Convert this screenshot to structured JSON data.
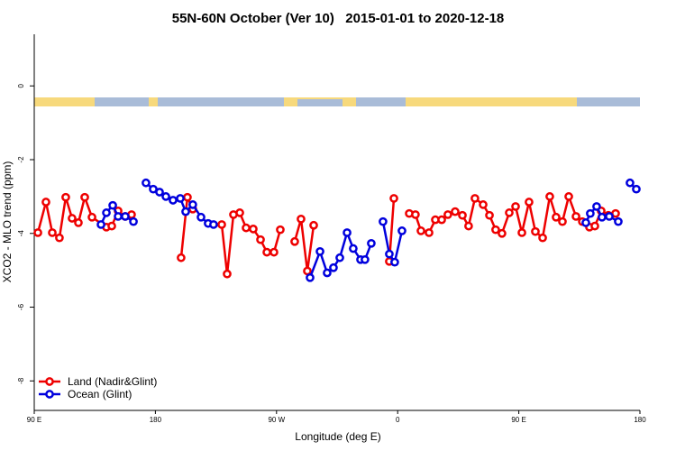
{
  "chart_data": {
    "type": "line",
    "title": "55N-60N October (Ver 10)   2015-01-01 to 2020-12-18",
    "x_label": "Longitude (deg E)",
    "y_label": "XCO2 - MLO trend (ppm)",
    "xlim": [
      90,
      540
    ],
    "xticks": [
      {
        "value": 90,
        "label": "90 E"
      },
      180,
      {
        "value": 270,
        "label": "90 W"
      },
      {
        "value": 360,
        "label": "0"
      },
      {
        "value": 450,
        "label": "90 E"
      },
      {
        "value": 540,
        "label": "180"
      }
    ],
    "ylim": [
      -8.8,
      1.4
    ],
    "yticks": [
      0,
      -2,
      -4,
      -6,
      -8
    ],
    "legend": "bottom-left",
    "series": [
      {
        "name": "Land (Nadir&Glint)",
        "color": "#ee0000",
        "x": [
          92.7,
          98.7,
          103.4,
          108.7,
          113.4,
          118.1,
          122.8,
          127.5,
          132.9,
          143.6,
          147.6,
          152.3,
          157.6,
          162.3,
          null,
          199.1,
          203.8,
          207.8,
          null,
          229.3,
          233.3,
          238.0,
          242.7,
          247.4,
          252.7,
          258.1,
          262.8,
          268.1,
          272.8,
          null,
          283.5,
          288.2,
          292.9,
          297.6,
          null,
          353.8,
          357.2,
          null,
          368.6,
          373.2,
          377.3,
          383.3,
          388.0,
          392.7,
          397.3,
          402.7,
          408.1,
          412.7,
          417.4,
          423.5,
          428.2,
          432.8,
          437.5,
          442.9,
          447.6,
          452.3,
          457.6,
          462.3,
          467.7,
          473.0,
          477.7,
          482.4,
          487.1,
          492.5,
          497.2,
          502.5,
          506.5,
          511.2,
          516.5,
          521.9
        ],
        "values": [
          -3.98,
          -3.15,
          -3.98,
          -4.12,
          -3.02,
          -3.59,
          -3.71,
          -3.02,
          -3.56,
          -3.83,
          -3.8,
          -3.39,
          -3.54,
          -3.49,
          null,
          -4.66,
          -3.02,
          -3.34,
          null,
          -3.76,
          -5.1,
          -3.49,
          -3.44,
          -3.85,
          -3.88,
          -4.17,
          -4.51,
          -4.51,
          -3.9,
          null,
          -4.22,
          -3.61,
          -5.02,
          -3.78,
          null,
          -4.76,
          -3.05,
          null,
          -3.46,
          -3.49,
          -3.93,
          -3.98,
          -3.63,
          -3.63,
          -3.49,
          -3.41,
          -3.51,
          -3.8,
          -3.05,
          -3.22,
          -3.51,
          -3.9,
          -4.0,
          -3.44,
          -3.27,
          -3.98,
          -3.15,
          -3.95,
          -4.12,
          -3.0,
          -3.56,
          -3.68,
          -3.0,
          -3.54,
          -3.68,
          -3.83,
          -3.8,
          -3.39,
          -3.51,
          -3.46
        ]
      },
      {
        "name": "Ocean (Glint)",
        "color": "#0000dd",
        "x": [
          139.6,
          143.6,
          148.3,
          152.3,
          157.6,
          163.7,
          null,
          173.0,
          178.4,
          183.1,
          187.8,
          193.1,
          198.5,
          202.5,
          207.8,
          213.9,
          219.2,
          223.2,
          null,
          294.9,
          302.3,
          307.6,
          312.3,
          317.0,
          322.4,
          327.0,
          332.4,
          335.7,
          340.4,
          null,
          349.1,
          353.8,
          357.8,
          363.2,
          null,
          499.8,
          503.1,
          507.8,
          511.8,
          517.2,
          523.9,
          null,
          532.6,
          537.3
        ],
        "values": [
          -3.76,
          -3.44,
          -3.24,
          -3.54,
          -3.54,
          -3.68,
          null,
          -2.63,
          -2.8,
          -2.88,
          -3.0,
          -3.1,
          -3.05,
          -3.41,
          -3.22,
          -3.56,
          -3.73,
          -3.76,
          null,
          -5.2,
          -4.49,
          -5.07,
          -4.93,
          -4.66,
          -3.98,
          -4.41,
          -4.71,
          -4.71,
          -4.27,
          null,
          -3.68,
          -4.56,
          -4.78,
          -3.93,
          null,
          -3.71,
          -3.46,
          -3.27,
          -3.56,
          -3.54,
          -3.68,
          null,
          -2.63,
          -2.8
        ]
      }
    ]
  }
}
